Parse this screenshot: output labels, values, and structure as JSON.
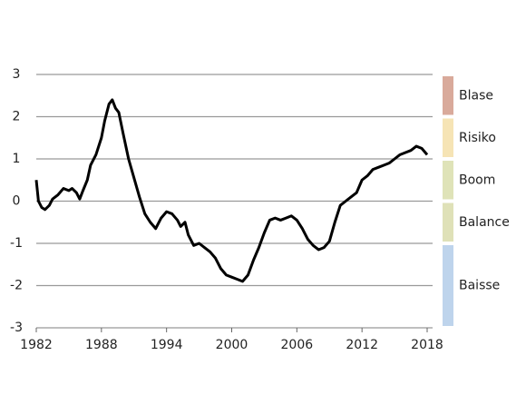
{
  "chart_data": {
    "type": "line",
    "x": [
      1982.0,
      1982.2,
      1982.5,
      1982.8,
      1983.2,
      1983.5,
      1984.0,
      1984.5,
      1985.0,
      1985.3,
      1985.7,
      1986.0,
      1986.3,
      1986.7,
      1987.0,
      1987.5,
      1988.0,
      1988.3,
      1988.7,
      1989.0,
      1989.3,
      1989.6,
      1990.0,
      1990.5,
      1991.0,
      1991.5,
      1992.0,
      1992.5,
      1993.0,
      1993.5,
      1994.0,
      1994.5,
      1995.0,
      1995.3,
      1995.7,
      1996.0,
      1996.5,
      1997.0,
      1997.5,
      1998.0,
      1998.5,
      1999.0,
      1999.5,
      2000.0,
      2000.5,
      2001.0,
      2001.5,
      2002.0,
      2002.5,
      2003.0,
      2003.5,
      2004.0,
      2004.5,
      2005.0,
      2005.5,
      2006.0,
      2006.5,
      2007.0,
      2007.5,
      2008.0,
      2008.5,
      2009.0,
      2009.5,
      2010.0,
      2010.5,
      2011.0,
      2011.5,
      2012.0,
      2012.5,
      2013.0,
      2013.5,
      2014.0,
      2014.5,
      2015.0,
      2015.5,
      2016.0,
      2016.5,
      2017.0,
      2017.5,
      2018.0
    ],
    "series": [
      {
        "color": "#000000",
        "values": [
          0.5,
          0.0,
          -0.15,
          -0.2,
          -0.1,
          0.05,
          0.15,
          0.3,
          0.25,
          0.3,
          0.2,
          0.05,
          0.25,
          0.5,
          0.85,
          1.1,
          1.5,
          1.9,
          2.3,
          2.4,
          2.2,
          2.1,
          1.6,
          1.0,
          0.55,
          0.1,
          -0.3,
          -0.5,
          -0.65,
          -0.4,
          -0.25,
          -0.3,
          -0.45,
          -0.6,
          -0.5,
          -0.8,
          -1.05,
          -1.0,
          -1.1,
          -1.2,
          -1.35,
          -1.6,
          -1.75,
          -1.8,
          -1.85,
          -1.9,
          -1.75,
          -1.4,
          -1.1,
          -0.75,
          -0.45,
          -0.4,
          -0.45,
          -0.4,
          -0.35,
          -0.45,
          -0.65,
          -0.9,
          -1.05,
          -1.15,
          -1.1,
          -0.95,
          -0.5,
          -0.1,
          0.0,
          0.1,
          0.2,
          0.5,
          0.6,
          0.75,
          0.8,
          0.85,
          0.9,
          1.0,
          1.1,
          1.15,
          1.2,
          1.3,
          1.25,
          1.1
        ]
      }
    ],
    "xlim": [
      1982,
      2018
    ],
    "xticks": [
      1982,
      1988,
      1994,
      2000,
      2006,
      2012,
      2018
    ],
    "ylim": [
      -3,
      3
    ],
    "yticks": [
      -3,
      -2,
      -1,
      0,
      1,
      2,
      3
    ],
    "grid": true,
    "zones": [
      {
        "name": "Blase",
        "from": 2,
        "to": 3,
        "color": "#d9aa9b"
      },
      {
        "name": "Risiko",
        "from": 1,
        "to": 2,
        "color": "#f6e4b5"
      },
      {
        "name": "Boom",
        "from": 0,
        "to": 1,
        "color": "#dfe3b8"
      },
      {
        "name": "Balance",
        "from": -1,
        "to": 0,
        "color": "#dfe1b8"
      },
      {
        "name": "Baisse",
        "from": -3,
        "to": -1,
        "color": "#bed4ec"
      }
    ]
  }
}
